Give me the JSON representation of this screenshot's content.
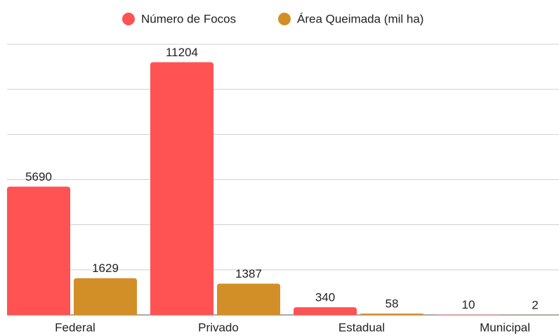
{
  "chart_data": {
    "type": "bar",
    "categories": [
      "Federal",
      "Privado",
      "Estadual",
      "Municipal"
    ],
    "series": [
      {
        "name": "Número de Focos",
        "color": "#ff5252",
        "values": [
          5690,
          11204,
          340,
          10
        ]
      },
      {
        "name": "Área Queimada (mil ha)",
        "color": "#d28f27",
        "values": [
          1629,
          1387,
          58,
          2
        ]
      }
    ],
    "ylim": [
      0,
      12000
    ],
    "yticks": [
      0,
      2000,
      4000,
      6000,
      8000,
      10000,
      12000
    ],
    "grid": true,
    "legend": "top"
  }
}
